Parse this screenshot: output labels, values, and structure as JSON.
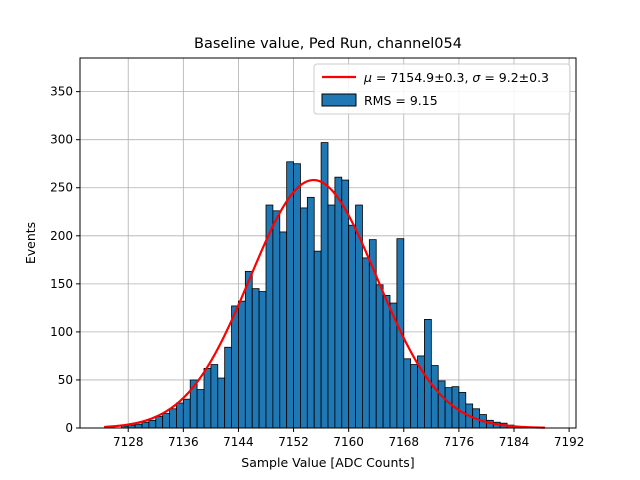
{
  "chart_data": {
    "type": "bar",
    "title": "Baseline value, Ped Run, channel054",
    "xlabel": "Sample Value [ADC Counts]",
    "ylabel": "Events",
    "xlim": [
      7121,
      7193
    ],
    "ylim": [
      0,
      385
    ],
    "xticks": [
      7128,
      7136,
      7144,
      7152,
      7160,
      7168,
      7176,
      7184,
      7192
    ],
    "yticks": [
      0,
      50,
      100,
      150,
      200,
      250,
      300,
      350
    ],
    "grid": true,
    "legend_position": "top-right",
    "bin_width": 1,
    "bins": [
      7127,
      7128,
      7129,
      7130,
      7131,
      7132,
      7133,
      7134,
      7135,
      7136,
      7137,
      7138,
      7139,
      7140,
      7141,
      7142,
      7143,
      7144,
      7145,
      7146,
      7147,
      7148,
      7149,
      7150,
      7151,
      7152,
      7153,
      7154,
      7155,
      7156,
      7157,
      7158,
      7159,
      7160,
      7161,
      7162,
      7163,
      7164,
      7165,
      7166,
      7167,
      7168,
      7169,
      7170,
      7171,
      7172,
      7173,
      7174,
      7175,
      7176,
      7177,
      7178,
      7179,
      7180,
      7181,
      7182,
      7183
    ],
    "counts": [
      2,
      3,
      4,
      6,
      8,
      12,
      15,
      20,
      26,
      30,
      50,
      40,
      62,
      66,
      52,
      84,
      127,
      132,
      163,
      145,
      142,
      232,
      226,
      204,
      277,
      275,
      229,
      240,
      184,
      297,
      232,
      261,
      258,
      211,
      232,
      177,
      196,
      149,
      138,
      130,
      197,
      72,
      66,
      75,
      113,
      65,
      49,
      42,
      43,
      37,
      25,
      20,
      14,
      8,
      6,
      5,
      3
    ],
    "series": [
      {
        "name": "$\\mu = 7154.9{\\pm}0.3$, $\\sigma = 9.2{\\pm}0.3$",
        "type": "line",
        "color": "#ff0000"
      },
      {
        "name": "RMS = 9.15",
        "type": "bar",
        "color": "#1f77b4"
      }
    ],
    "fit": {
      "mu": 7154.9,
      "sigma": 9.2,
      "amplitude": 258,
      "x_range": [
        7124.5,
        7188.5
      ]
    }
  },
  "legend": {
    "fit_mu": "7154.9±0.3",
    "fit_sigma": "9.2±0.3"
  }
}
